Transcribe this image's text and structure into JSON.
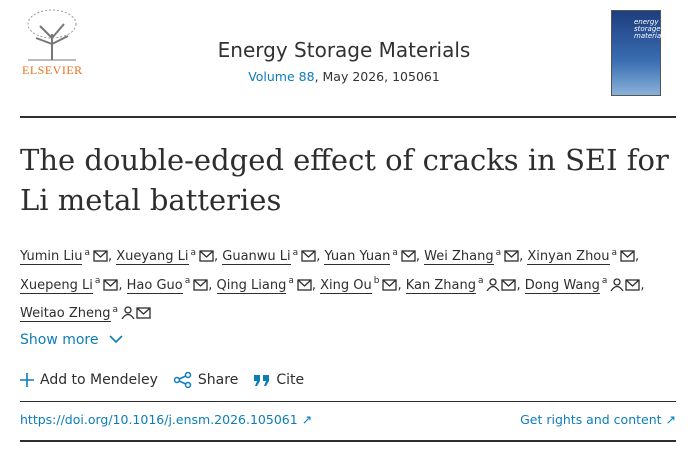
{
  "header": {
    "publisher": "ELSEVIER",
    "journal": "Energy Storage Materials",
    "volume": "Volume 88",
    "citation": ", May 2026, 105061",
    "cover_title": "energy storage materials"
  },
  "article": {
    "title": "The double-edged effect of cracks in SEI for Li metal batteries",
    "authors": [
      {
        "name": "Yumin Liu",
        "affiliation": "a",
        "corresponding": false
      },
      {
        "name": "Xueyang Li",
        "affiliation": "a",
        "corresponding": false
      },
      {
        "name": "Guanwu Li",
        "affiliation": "a",
        "corresponding": false
      },
      {
        "name": "Yuan Yuan",
        "affiliation": "a",
        "corresponding": false
      },
      {
        "name": "Wei Zhang",
        "affiliation": "a",
        "corresponding": false
      },
      {
        "name": "Xinyan Zhou",
        "affiliation": "a",
        "corresponding": false
      },
      {
        "name": "Xuepeng Li",
        "affiliation": "a",
        "corresponding": false
      },
      {
        "name": "Hao Guo",
        "affiliation": "a",
        "corresponding": false
      },
      {
        "name": "Qing Liang",
        "affiliation": "a",
        "corresponding": false
      },
      {
        "name": "Xing Ou",
        "affiliation": "b",
        "corresponding": false
      },
      {
        "name": "Kan Zhang",
        "affiliation": "a",
        "corresponding": true
      },
      {
        "name": "Dong Wang",
        "affiliation": "a",
        "corresponding": true
      },
      {
        "name": "Weitao Zheng",
        "affiliation": "a",
        "corresponding": true
      }
    ],
    "show_more": "Show more",
    "actions": [
      "Add to Mendeley",
      "Share",
      "Cite"
    ],
    "doi": "https://doi.org/10.1016/j.ensm.2026.105061",
    "rights": "Get rights and content"
  }
}
